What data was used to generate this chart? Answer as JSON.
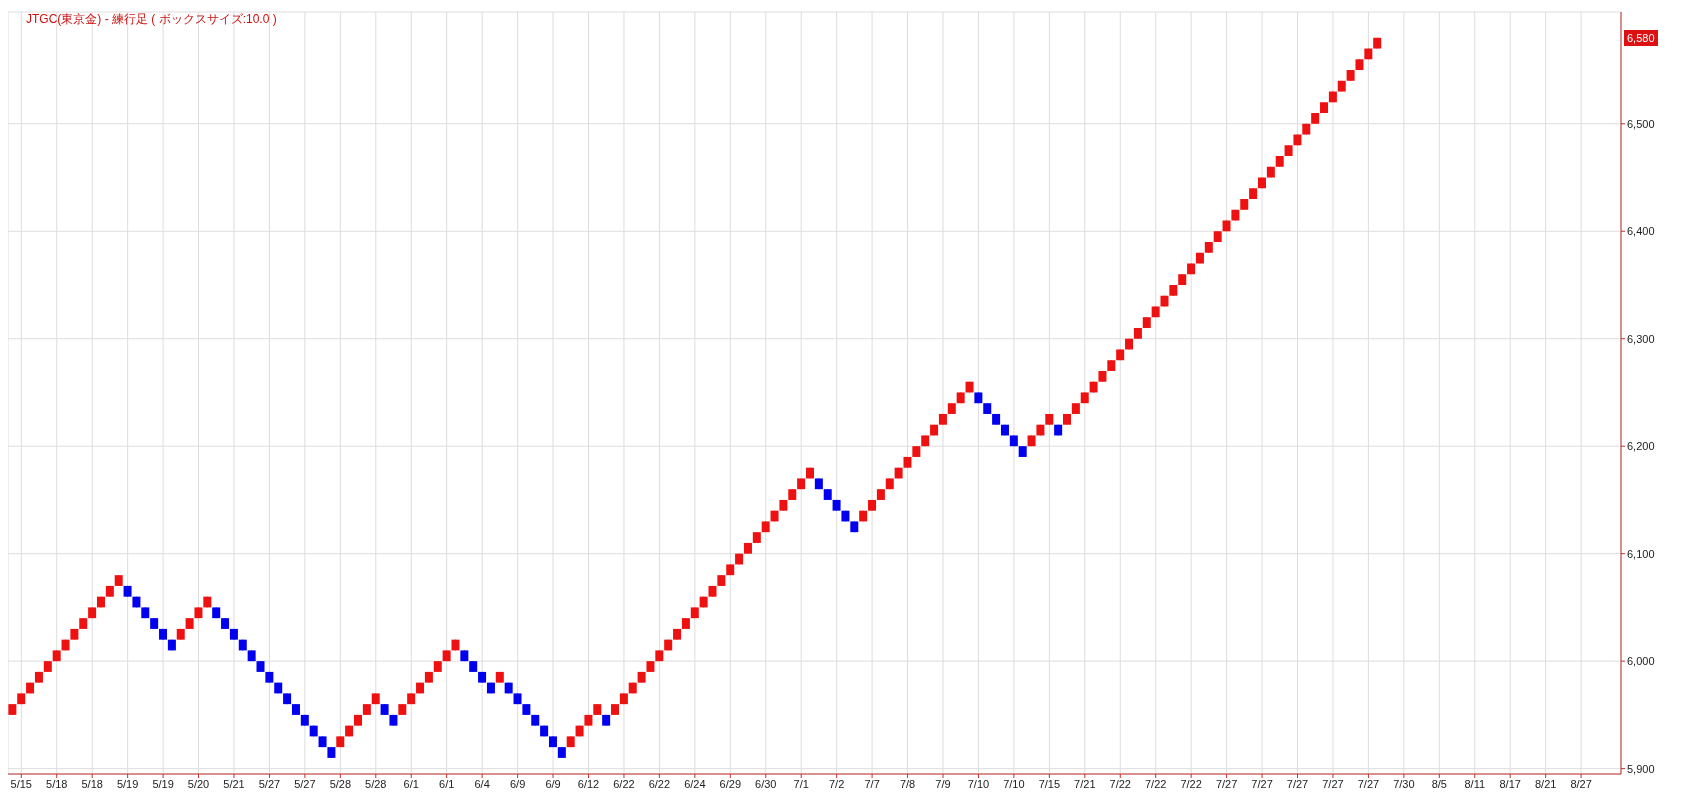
{
  "chart_data": {
    "type": "candlestick",
    "title": "JTGC(東京金) - 練行足 ( ボックスサイズ:10.0 )",
    "categories": [
      null,
      "5/15",
      null,
      null,
      null,
      "5/18",
      null,
      null,
      null,
      "5/18",
      null,
      null,
      null,
      "5/19",
      null,
      null,
      null,
      "5/19",
      null,
      null,
      null,
      "5/20",
      null,
      null,
      null,
      "5/21",
      null,
      null,
      null,
      "5/27",
      null,
      null,
      null,
      "5/27",
      null,
      null,
      null,
      "5/28",
      null,
      null,
      null,
      "5/28",
      null,
      null,
      null,
      "6/1",
      null,
      null,
      null,
      "6/1",
      null,
      null,
      null,
      "6/4",
      null,
      null,
      null,
      "6/9",
      null,
      null,
      null,
      "6/9",
      null,
      null,
      null,
      "6/12",
      null,
      null,
      null,
      "6/22",
      null,
      null,
      null,
      "6/22",
      null,
      null,
      null,
      "6/24",
      null,
      null,
      null,
      "6/29",
      null,
      null,
      null,
      "6/30",
      null,
      null,
      null,
      "7/1",
      null,
      null,
      null,
      "7/2",
      null,
      null,
      null,
      "7/7",
      null,
      null,
      null,
      "7/8",
      null,
      null,
      null,
      "7/9",
      null,
      null,
      null,
      "7/10",
      null,
      null,
      null,
      "7/10",
      null,
      null,
      null,
      "7/15",
      null,
      null,
      null,
      "7/21",
      null,
      null,
      null,
      "7/22",
      null,
      null,
      null,
      "7/22",
      null,
      null,
      null,
      "7/22",
      null,
      null,
      null,
      "7/27",
      null,
      null,
      null,
      "7/27",
      null,
      null,
      null,
      "7/27",
      null,
      null,
      null,
      "7/27",
      null,
      null,
      null,
      "7/27",
      null,
      null,
      null,
      "7/30",
      null,
      null,
      null,
      "8/5",
      null,
      null,
      null,
      "8/11",
      null,
      null,
      null,
      "8/17",
      null,
      null,
      null,
      "8/21",
      null,
      null,
      null,
      "8/27",
      null,
      null,
      null,
      null
    ],
    "ohlc": [
      [
        5950,
        5960,
        5950,
        5960
      ],
      [
        5960,
        5970,
        5960,
        5970
      ],
      [
        5970,
        5980,
        5970,
        5980
      ],
      [
        5980,
        5990,
        5980,
        5990
      ],
      [
        5990,
        6000,
        5990,
        6000
      ],
      [
        6000,
        6010,
        6000,
        6010
      ],
      [
        6010,
        6020,
        6010,
        6020
      ],
      [
        6020,
        6030,
        6020,
        6030
      ],
      [
        6030,
        6040,
        6030,
        6040
      ],
      [
        6040,
        6050,
        6040,
        6050
      ],
      [
        6050,
        6060,
        6050,
        6060
      ],
      [
        6060,
        6070,
        6060,
        6070
      ],
      [
        6070,
        6080,
        6070,
        6080
      ],
      [
        6070,
        6070,
        6060,
        6060
      ],
      [
        6060,
        6060,
        6050,
        6050
      ],
      [
        6050,
        6050,
        6040,
        6040
      ],
      [
        6040,
        6040,
        6030,
        6030
      ],
      [
        6030,
        6030,
        6020,
        6020
      ],
      [
        6020,
        6020,
        6010,
        6010
      ],
      [
        6020,
        6030,
        6020,
        6030
      ],
      [
        6030,
        6040,
        6030,
        6040
      ],
      [
        6040,
        6050,
        6040,
        6050
      ],
      [
        6050,
        6060,
        6050,
        6060
      ],
      [
        6050,
        6050,
        6040,
        6040
      ],
      [
        6040,
        6040,
        6030,
        6030
      ],
      [
        6030,
        6030,
        6020,
        6020
      ],
      [
        6020,
        6020,
        6010,
        6010
      ],
      [
        6010,
        6010,
        6000,
        6000
      ],
      [
        6000,
        6000,
        5990,
        5990
      ],
      [
        5990,
        5990,
        5980,
        5980
      ],
      [
        5980,
        5980,
        5970,
        5970
      ],
      [
        5970,
        5970,
        5960,
        5960
      ],
      [
        5960,
        5960,
        5950,
        5950
      ],
      [
        5950,
        5950,
        5940,
        5940
      ],
      [
        5940,
        5940,
        5930,
        5930
      ],
      [
        5930,
        5930,
        5920,
        5920
      ],
      [
        5920,
        5920,
        5910,
        5910
      ],
      [
        5920,
        5930,
        5920,
        5930
      ],
      [
        5930,
        5940,
        5930,
        5940
      ],
      [
        5940,
        5950,
        5940,
        5950
      ],
      [
        5950,
        5960,
        5950,
        5960
      ],
      [
        5960,
        5970,
        5960,
        5970
      ],
      [
        5960,
        5960,
        5950,
        5950
      ],
      [
        5950,
        5950,
        5940,
        5940
      ],
      [
        5950,
        5960,
        5950,
        5960
      ],
      [
        5960,
        5970,
        5960,
        5970
      ],
      [
        5970,
        5980,
        5970,
        5980
      ],
      [
        5980,
        5990,
        5980,
        5990
      ],
      [
        5990,
        6000,
        5990,
        6000
      ],
      [
        6000,
        6010,
        6000,
        6010
      ],
      [
        6010,
        6020,
        6010,
        6020
      ],
      [
        6010,
        6010,
        6000,
        6000
      ],
      [
        6000,
        6000,
        5990,
        5990
      ],
      [
        5990,
        5990,
        5980,
        5980
      ],
      [
        5980,
        5980,
        5970,
        5970
      ],
      [
        5980,
        5990,
        5980,
        5990
      ],
      [
        5980,
        5980,
        5970,
        5970
      ],
      [
        5970,
        5970,
        5960,
        5960
      ],
      [
        5960,
        5960,
        5950,
        5950
      ],
      [
        5950,
        5950,
        5940,
        5940
      ],
      [
        5940,
        5940,
        5930,
        5930
      ],
      [
        5930,
        5930,
        5920,
        5920
      ],
      [
        5920,
        5920,
        5910,
        5910
      ],
      [
        5920,
        5930,
        5920,
        5930
      ],
      [
        5930,
        5940,
        5930,
        5940
      ],
      [
        5940,
        5950,
        5940,
        5950
      ],
      [
        5950,
        5960,
        5950,
        5960
      ],
      [
        5950,
        5950,
        5940,
        5940
      ],
      [
        5950,
        5960,
        5950,
        5960
      ],
      [
        5960,
        5970,
        5960,
        5970
      ],
      [
        5970,
        5980,
        5970,
        5980
      ],
      [
        5980,
        5990,
        5980,
        5990
      ],
      [
        5990,
        6000,
        5990,
        6000
      ],
      [
        6000,
        6010,
        6000,
        6010
      ],
      [
        6010,
        6020,
        6010,
        6020
      ],
      [
        6020,
        6030,
        6020,
        6030
      ],
      [
        6030,
        6040,
        6030,
        6040
      ],
      [
        6040,
        6050,
        6040,
        6050
      ],
      [
        6050,
        6060,
        6050,
        6060
      ],
      [
        6060,
        6070,
        6060,
        6070
      ],
      [
        6070,
        6080,
        6070,
        6080
      ],
      [
        6080,
        6090,
        6080,
        6090
      ],
      [
        6090,
        6100,
        6090,
        6100
      ],
      [
        6100,
        6110,
        6100,
        6110
      ],
      [
        6110,
        6120,
        6110,
        6120
      ],
      [
        6120,
        6130,
        6120,
        6130
      ],
      [
        6130,
        6140,
        6130,
        6140
      ],
      [
        6140,
        6150,
        6140,
        6150
      ],
      [
        6150,
        6160,
        6150,
        6160
      ],
      [
        6160,
        6170,
        6160,
        6170
      ],
      [
        6170,
        6180,
        6170,
        6180
      ],
      [
        6170,
        6170,
        6160,
        6160
      ],
      [
        6160,
        6160,
        6150,
        6150
      ],
      [
        6150,
        6150,
        6140,
        6140
      ],
      [
        6140,
        6140,
        6130,
        6130
      ],
      [
        6130,
        6130,
        6120,
        6120
      ],
      [
        6130,
        6140,
        6130,
        6140
      ],
      [
        6140,
        6150,
        6140,
        6150
      ],
      [
        6150,
        6160,
        6150,
        6160
      ],
      [
        6160,
        6170,
        6160,
        6170
      ],
      [
        6170,
        6180,
        6170,
        6180
      ],
      [
        6180,
        6190,
        6180,
        6190
      ],
      [
        6190,
        6200,
        6190,
        6200
      ],
      [
        6200,
        6210,
        6200,
        6210
      ],
      [
        6210,
        6220,
        6210,
        6220
      ],
      [
        6220,
        6230,
        6220,
        6230
      ],
      [
        6230,
        6240,
        6230,
        6240
      ],
      [
        6240,
        6250,
        6240,
        6250
      ],
      [
        6250,
        6260,
        6250,
        6260
      ],
      [
        6250,
        6250,
        6240,
        6240
      ],
      [
        6240,
        6240,
        6230,
        6230
      ],
      [
        6230,
        6230,
        6220,
        6220
      ],
      [
        6220,
        6220,
        6210,
        6210
      ],
      [
        6210,
        6210,
        6200,
        6200
      ],
      [
        6200,
        6200,
        6190,
        6190
      ],
      [
        6200,
        6210,
        6200,
        6210
      ],
      [
        6210,
        6220,
        6210,
        6220
      ],
      [
        6220,
        6230,
        6220,
        6230
      ],
      [
        6220,
        6220,
        6210,
        6210
      ],
      [
        6220,
        6230,
        6220,
        6230
      ],
      [
        6230,
        6240,
        6230,
        6240
      ],
      [
        6240,
        6250,
        6240,
        6250
      ],
      [
        6250,
        6260,
        6250,
        6260
      ],
      [
        6260,
        6270,
        6260,
        6270
      ],
      [
        6270,
        6280,
        6270,
        6280
      ],
      [
        6280,
        6290,
        6280,
        6290
      ],
      [
        6290,
        6300,
        6290,
        6300
      ],
      [
        6300,
        6310,
        6300,
        6310
      ],
      [
        6310,
        6320,
        6310,
        6320
      ],
      [
        6320,
        6330,
        6320,
        6330
      ],
      [
        6330,
        6340,
        6330,
        6340
      ],
      [
        6340,
        6350,
        6340,
        6350
      ],
      [
        6350,
        6360,
        6350,
        6360
      ],
      [
        6360,
        6370,
        6360,
        6370
      ],
      [
        6370,
        6380,
        6370,
        6380
      ],
      [
        6380,
        6390,
        6380,
        6390
      ],
      [
        6390,
        6400,
        6390,
        6400
      ],
      [
        6400,
        6410,
        6400,
        6410
      ],
      [
        6410,
        6420,
        6410,
        6420
      ],
      [
        6420,
        6430,
        6420,
        6430
      ],
      [
        6430,
        6440,
        6430,
        6440
      ],
      [
        6440,
        6450,
        6440,
        6450
      ],
      [
        6450,
        6460,
        6450,
        6460
      ],
      [
        6460,
        6470,
        6460,
        6470
      ],
      [
        6470,
        6480,
        6470,
        6480
      ],
      [
        6480,
        6490,
        6480,
        6490
      ],
      [
        6490,
        6500,
        6490,
        6500
      ],
      [
        6500,
        6510,
        6500,
        6510
      ],
      [
        6510,
        6520,
        6510,
        6520
      ],
      [
        6520,
        6530,
        6520,
        6530
      ],
      [
        6530,
        6540,
        6530,
        6540
      ],
      [
        6540,
        6550,
        6540,
        6550
      ],
      [
        6550,
        6560,
        6550,
        6560
      ],
      [
        6560,
        6570,
        6560,
        6570
      ],
      [
        6570,
        6580,
        6570,
        6580
      ],
      null,
      null,
      null,
      null,
      null,
      null,
      null,
      null,
      null,
      null,
      null,
      null,
      null,
      null,
      null,
      null,
      null,
      null,
      null,
      null,
      null,
      null,
      null,
      null,
      null,
      null,
      null
    ],
    "colors": [
      "#ee1111",
      "#ee1111",
      "#ee1111",
      "#ee1111",
      "#ee1111",
      "#ee1111",
      "#ee1111",
      "#ee1111",
      "#ee1111",
      "#ee1111",
      "#ee1111",
      "#ee1111",
      "#ee1111",
      "#0000ee",
      "#0000ee",
      "#0000ee",
      "#0000ee",
      "#0000ee",
      "#0000ee",
      "#ee1111",
      "#ee1111",
      "#ee1111",
      "#ee1111",
      "#0000ee",
      "#0000ee",
      "#0000ee",
      "#0000ee",
      "#0000ee",
      "#0000ee",
      "#0000ee",
      "#0000ee",
      "#0000ee",
      "#0000ee",
      "#0000ee",
      "#0000ee",
      "#0000ee",
      "#0000ee",
      "#ee1111",
      "#ee1111",
      "#ee1111",
      "#ee1111",
      "#ee1111",
      "#0000ee",
      "#0000ee",
      "#ee1111",
      "#ee1111",
      "#ee1111",
      "#ee1111",
      "#ee1111",
      "#ee1111",
      "#ee1111",
      "#0000ee",
      "#0000ee",
      "#0000ee",
      "#0000ee",
      "#ee1111",
      "#0000ee",
      "#0000ee",
      "#0000ee",
      "#0000ee",
      "#0000ee",
      "#0000ee",
      "#0000ee",
      "#ee1111",
      "#ee1111",
      "#ee1111",
      "#ee1111",
      "#0000ee",
      "#ee1111",
      "#ee1111",
      "#ee1111",
      "#ee1111",
      "#ee1111",
      "#ee1111",
      "#ee1111",
      "#ee1111",
      "#ee1111",
      "#ee1111",
      "#ee1111",
      "#ee1111",
      "#ee1111",
      "#ee1111",
      "#ee1111",
      "#ee1111",
      "#ee1111",
      "#ee1111",
      "#ee1111",
      "#ee1111",
      "#ee1111",
      "#ee1111",
      "#ee1111",
      "#0000ee",
      "#0000ee",
      "#0000ee",
      "#0000ee",
      "#0000ee",
      "#ee1111",
      "#ee1111",
      "#ee1111",
      "#ee1111",
      "#ee1111",
      "#ee1111",
      "#ee1111",
      "#ee1111",
      "#ee1111",
      "#ee1111",
      "#ee1111",
      "#ee1111",
      "#ee1111",
      "#0000ee",
      "#0000ee",
      "#0000ee",
      "#0000ee",
      "#0000ee",
      "#0000ee",
      "#ee1111",
      "#ee1111",
      "#ee1111",
      "#0000ee",
      "#ee1111",
      "#ee1111",
      "#ee1111",
      "#ee1111",
      "#ee1111",
      "#ee1111",
      "#ee1111",
      "#ee1111",
      "#ee1111",
      "#ee1111",
      "#ee1111",
      "#ee1111",
      "#ee1111",
      "#ee1111",
      "#ee1111",
      "#ee1111",
      "#ee1111",
      "#ee1111",
      "#ee1111",
      "#ee1111",
      "#ee1111",
      "#ee1111",
      "#ee1111",
      "#ee1111",
      "#ee1111",
      "#ee1111",
      "#ee1111",
      "#ee1111",
      "#ee1111",
      "#ee1111",
      "#ee1111",
      "#ee1111",
      "#ee1111",
      "#ee1111",
      "#ee1111",
      "#ee1111",
      null,
      null,
      null,
      null,
      null,
      null,
      null,
      null,
      null,
      null,
      null,
      null,
      null,
      null,
      null,
      null,
      null,
      null,
      null,
      null,
      null,
      null,
      null,
      null,
      null,
      null,
      null
    ],
    "ylim": [
      5895,
      6604
    ],
    "yticks": [
      {
        "value": 5900,
        "label": "5,900"
      },
      {
        "value": 6000,
        "label": "6,000"
      },
      {
        "value": 6100,
        "label": "6,100"
      },
      {
        "value": 6200,
        "label": "6,200"
      },
      {
        "value": 6300,
        "label": "6,300"
      },
      {
        "value": 6400,
        "label": "6,400"
      },
      {
        "value": 6500,
        "label": "6,500"
      }
    ],
    "annotations": [
      {
        "text": "6,580",
        "y": 6580
      }
    ],
    "grid": true
  }
}
